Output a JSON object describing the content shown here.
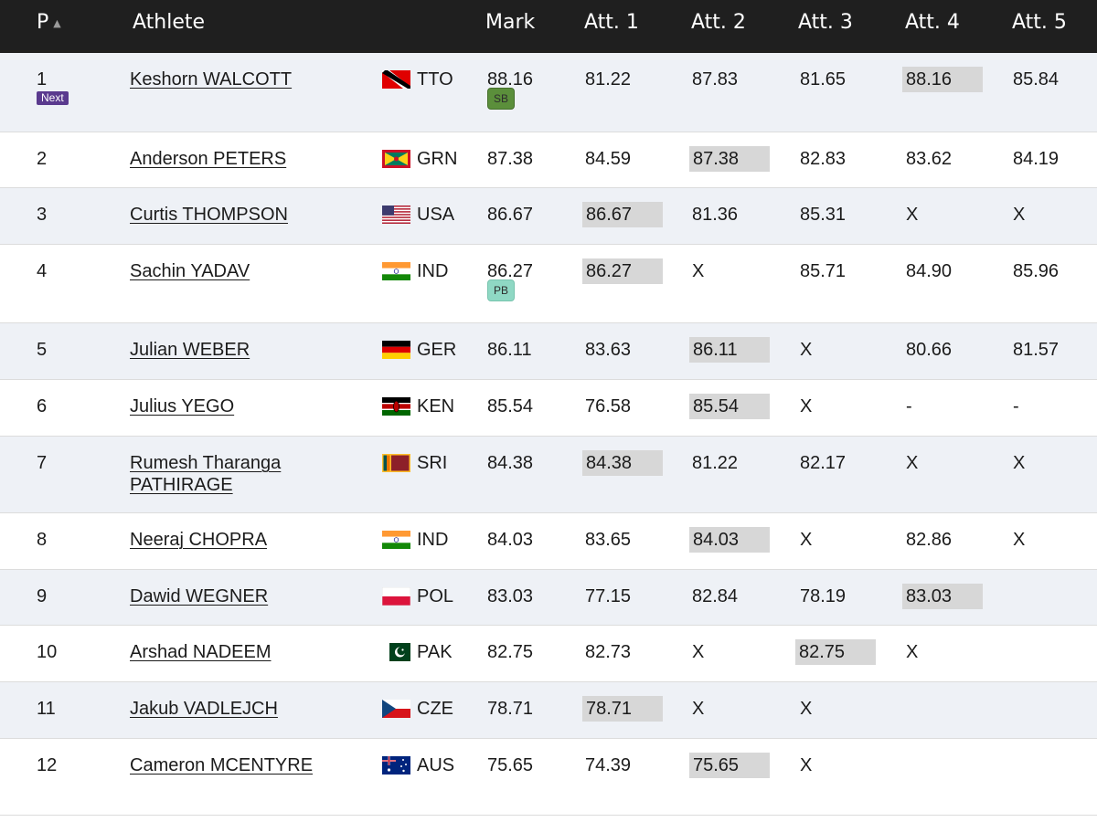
{
  "header": {
    "pos": "P",
    "athlete": "Athlete",
    "mark": "Mark",
    "att1": "Att. 1",
    "att2": "Att. 2",
    "att3": "Att. 3",
    "att4": "Att. 4",
    "att5": "Att. 5"
  },
  "rows": [
    {
      "pos": "1",
      "name": "Keshorn WALCOTT",
      "country": "TTO",
      "mark": "88.16",
      "badge": "SB",
      "next": "Next",
      "attempts": [
        "81.22",
        "87.83",
        "81.65",
        "88.16",
        "85.84"
      ],
      "best": 4
    },
    {
      "pos": "2",
      "name": "Anderson PETERS",
      "country": "GRN",
      "mark": "87.38",
      "attempts": [
        "84.59",
        "87.38",
        "82.83",
        "83.62",
        "84.19"
      ],
      "best": 2
    },
    {
      "pos": "3",
      "name": "Curtis THOMPSON",
      "country": "USA",
      "mark": "86.67",
      "attempts": [
        "86.67",
        "81.36",
        "85.31",
        "X",
        "X"
      ],
      "best": 1
    },
    {
      "pos": "4",
      "name": "Sachin YADAV",
      "country": "IND",
      "mark": "86.27",
      "badge": "PB",
      "attempts": [
        "86.27",
        "X",
        "85.71",
        "84.90",
        "85.96"
      ],
      "best": 1
    },
    {
      "pos": "5",
      "name": "Julian WEBER",
      "country": "GER",
      "mark": "86.11",
      "attempts": [
        "83.63",
        "86.11",
        "X",
        "80.66",
        "81.57"
      ],
      "best": 2
    },
    {
      "pos": "6",
      "name": "Julius YEGO",
      "country": "KEN",
      "mark": "85.54",
      "attempts": [
        "76.58",
        "85.54",
        "X",
        "-",
        "-"
      ],
      "best": 2
    },
    {
      "pos": "7",
      "name": "Rumesh Tharanga PATHIRAGE",
      "country": "SRI",
      "mark": "84.38",
      "attempts": [
        "84.38",
        "81.22",
        "82.17",
        "X",
        "X"
      ],
      "best": 1
    },
    {
      "pos": "8",
      "name": "Neeraj CHOPRA",
      "country": "IND",
      "mark": "84.03",
      "attempts": [
        "83.65",
        "84.03",
        "X",
        "82.86",
        "X"
      ],
      "best": 2
    },
    {
      "pos": "9",
      "name": "Dawid WEGNER",
      "country": "POL",
      "mark": "83.03",
      "attempts": [
        "77.15",
        "82.84",
        "78.19",
        "83.03",
        ""
      ],
      "best": 4
    },
    {
      "pos": "10",
      "name": "Arshad NADEEM",
      "country": "PAK",
      "mark": "82.75",
      "attempts": [
        "82.73",
        "X",
        "82.75",
        "X",
        ""
      ],
      "best": 3
    },
    {
      "pos": "11",
      "name": "Jakub VADLEJCH",
      "country": "CZE",
      "mark": "78.71",
      "attempts": [
        "78.71",
        "X",
        "X",
        "",
        ""
      ],
      "best": 1
    },
    {
      "pos": "12",
      "name": "Cameron MCENTYRE",
      "country": "AUS",
      "mark": "75.65",
      "attempts": [
        "74.39",
        "75.65",
        "X",
        "",
        ""
      ],
      "best": 2
    }
  ],
  "colors": {
    "header_bg": "#1f1f1f",
    "alt_row_bg": "#eef1f6",
    "best_attempt_bg": "#d7d7d7",
    "next_badge": "#5a3a8e",
    "sb_badge": "#5b8f3b",
    "pb_badge": "#8fd8c4"
  }
}
